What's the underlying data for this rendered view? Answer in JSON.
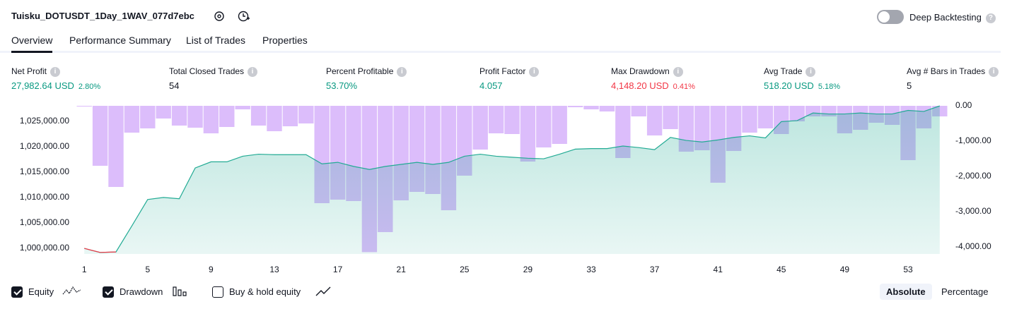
{
  "header": {
    "title": "Tuisku_DOTUSDT_1Day_1WAV_077d7ebc",
    "toggle": "Deep Backtesting"
  },
  "tabs": [
    "Overview",
    "Performance Summary",
    "List of Trades",
    "Properties"
  ],
  "metrics": [
    {
      "label": "Net Profit",
      "value": "27,982.64 USD",
      "percent": "2.80%",
      "color": "#089981"
    },
    {
      "label": "Total Closed Trades",
      "value": "54",
      "color": "#131722"
    },
    {
      "label": "Percent Profitable",
      "value": "53.70%",
      "color": "#089981"
    },
    {
      "label": "Profit Factor",
      "value": "4.057",
      "color": "#089981"
    },
    {
      "label": "Max Drawdown",
      "value": "4,148.20 USD",
      "percent": "0.41%",
      "color": "#f23645"
    },
    {
      "label": "Avg Trade",
      "value": "518.20 USD",
      "percent": "5.18%",
      "color": "#089981"
    },
    {
      "label": "Avg # Bars in Trades",
      "value": "5",
      "color": "#131722"
    }
  ],
  "chart_data": {
    "type": "line",
    "x": [
      1,
      2,
      3,
      4,
      5,
      6,
      7,
      8,
      9,
      10,
      11,
      12,
      13,
      14,
      15,
      16,
      17,
      18,
      19,
      20,
      21,
      22,
      23,
      24,
      25,
      26,
      27,
      28,
      29,
      30,
      31,
      32,
      33,
      34,
      35,
      36,
      37,
      38,
      39,
      40,
      41,
      42,
      43,
      44,
      45,
      46,
      47,
      48,
      49,
      50,
      51,
      52,
      53,
      54,
      55
    ],
    "series": [
      {
        "name": "Equity",
        "color": "#22ab94",
        "negative_color": "#f23645",
        "axis": "y",
        "values": [
          1000000,
          999200,
          999300,
          1004400,
          1009600,
          1010000,
          1009750,
          1015800,
          1017000,
          1017000,
          1018100,
          1018500,
          1018400,
          1018400,
          1018400,
          1016600,
          1016900,
          1016100,
          1015500,
          1016100,
          1016500,
          1016900,
          1016500,
          1016900,
          1018100,
          1018500,
          1018100,
          1017900,
          1017700,
          1017600,
          1018500,
          1019500,
          1019600,
          1019600,
          1020100,
          1019800,
          1019400,
          1021800,
          1021200,
          1020900,
          1021300,
          1021800,
          1022100,
          1021700,
          1024900,
          1025100,
          1026600,
          1026400,
          1026400,
          1026600,
          1026400,
          1026400,
          1027100,
          1026900,
          1027982.64
        ]
      },
      {
        "name": "Drawdown",
        "type": "bar",
        "color": "#dcbdfb",
        "axis": "y2",
        "values": [
          -20,
          -1700,
          -2300,
          -760,
          -640,
          -360,
          -560,
          -620,
          -780,
          -600,
          -100,
          -560,
          -720,
          -580,
          -500,
          -2760,
          -2660,
          -2700,
          -4148.2,
          -3580,
          -2680,
          -2440,
          -2500,
          -2960,
          -1980,
          -1240,
          -780,
          -800,
          -1580,
          -1180,
          -1080,
          -40,
          -100,
          -160,
          -1480,
          -300,
          -840,
          -660,
          -1300,
          -1260,
          -2180,
          -1280,
          -760,
          -640,
          -800,
          -440,
          -300,
          -300,
          -780,
          -680,
          -480,
          -540,
          -1540,
          -640,
          -300
        ]
      }
    ],
    "xlim": [
      0.5,
      55.5
    ],
    "xticks": [
      1,
      5,
      9,
      13,
      17,
      21,
      25,
      29,
      33,
      37,
      41,
      45,
      49,
      53
    ],
    "ylim": [
      998900,
      1028000
    ],
    "yticks": [
      {
        "value": 1000000,
        "label": "1,000,000.00"
      },
      {
        "value": 1005000,
        "label": "1,005,000.00"
      },
      {
        "value": 1010000,
        "label": "1,010,000.00"
      },
      {
        "value": 1015000,
        "label": "1,015,000.00"
      },
      {
        "value": 1020000,
        "label": "1,020,000.00"
      },
      {
        "value": 1025000,
        "label": "1,025,000.00"
      }
    ],
    "y2lim": [
      -4200,
      0
    ],
    "y2ticks": [
      {
        "value": 0,
        "label": "0.00"
      },
      {
        "value": -1000,
        "label": "-1,000.00"
      },
      {
        "value": -2000,
        "label": "-2,000.00"
      },
      {
        "value": -3000,
        "label": "-3,000.00"
      },
      {
        "value": -4000,
        "label": "-4,000.00"
      }
    ]
  },
  "legend": [
    {
      "label": "Equity",
      "checked": true
    },
    {
      "label": "Drawdown",
      "checked": true
    },
    {
      "label": "Buy & hold equity",
      "checked": false
    }
  ],
  "buttons": [
    "Absolute",
    "Percentage"
  ]
}
